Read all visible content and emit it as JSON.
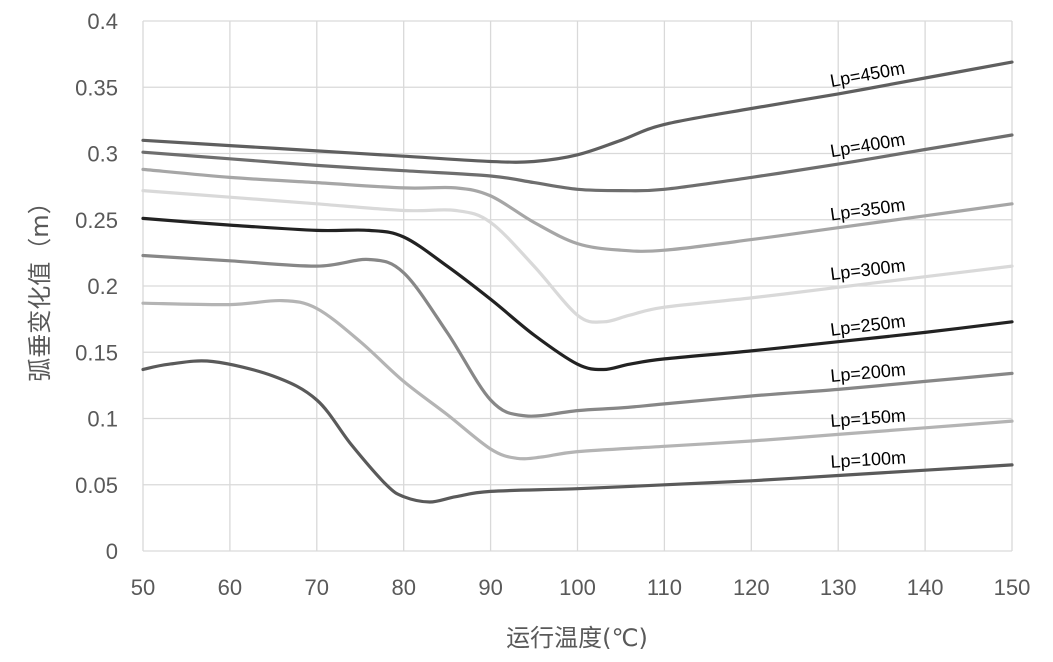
{
  "chart_data": {
    "type": "line",
    "title": "",
    "xlabel": "运行温度(℃)",
    "ylabel": "弧垂变化值（m）",
    "xlim": [
      50,
      150
    ],
    "ylim": [
      0,
      0.4
    ],
    "x_ticks": [
      "50",
      "60",
      "70",
      "80",
      "90",
      "100",
      "110",
      "120",
      "130",
      "140",
      "150"
    ],
    "y_ticks": [
      "0",
      "0.05",
      "0.1",
      "0.15",
      "0.2",
      "0.25",
      "0.3",
      "0.35",
      "0.4"
    ],
    "grid": true,
    "legend": "none",
    "series": [
      {
        "name": "Lp=450m",
        "color": "#5f5f5f",
        "x": [
          50,
          60,
          70,
          80,
          90,
          95,
          100,
          105,
          110,
          120,
          130,
          140,
          150
        ],
        "y": [
          0.31,
          0.306,
          0.302,
          0.298,
          0.294,
          0.294,
          0.299,
          0.31,
          0.322,
          0.334,
          0.345,
          0.357,
          0.369
        ]
      },
      {
        "name": "Lp=400m",
        "color": "#6e6e6e",
        "x": [
          50,
          60,
          70,
          80,
          90,
          95,
          100,
          105,
          110,
          120,
          130,
          140,
          150
        ],
        "y": [
          0.301,
          0.296,
          0.291,
          0.287,
          0.283,
          0.278,
          0.273,
          0.272,
          0.273,
          0.282,
          0.292,
          0.303,
          0.314
        ]
      },
      {
        "name": "Lp=350m",
        "color": "#a6a6a6",
        "x": [
          50,
          60,
          70,
          80,
          86,
          90,
          95,
          100,
          105,
          110,
          120,
          130,
          140,
          150
        ],
        "y": [
          0.288,
          0.282,
          0.278,
          0.274,
          0.274,
          0.268,
          0.248,
          0.232,
          0.227,
          0.227,
          0.235,
          0.244,
          0.253,
          0.262
        ]
      },
      {
        "name": "Lp=300m",
        "color": "#d9d9d9",
        "x": [
          50,
          60,
          70,
          80,
          86,
          90,
          95,
          100,
          103,
          106,
          110,
          120,
          130,
          140,
          150
        ],
        "y": [
          0.272,
          0.267,
          0.262,
          0.257,
          0.257,
          0.248,
          0.215,
          0.178,
          0.173,
          0.178,
          0.184,
          0.191,
          0.199,
          0.207,
          0.215
        ]
      },
      {
        "name": "Lp=250m",
        "color": "#222222",
        "x": [
          50,
          60,
          70,
          76,
          80,
          85,
          90,
          95,
          100,
          103,
          106,
          110,
          120,
          130,
          140,
          150
        ],
        "y": [
          0.251,
          0.246,
          0.242,
          0.242,
          0.237,
          0.215,
          0.19,
          0.163,
          0.141,
          0.137,
          0.141,
          0.145,
          0.151,
          0.158,
          0.165,
          0.173
        ]
      },
      {
        "name": "Lp=200m",
        "color": "#878787",
        "x": [
          50,
          60,
          70,
          76,
          80,
          85,
          90,
          94,
          100,
          105,
          110,
          120,
          130,
          140,
          150
        ],
        "y": [
          0.223,
          0.219,
          0.215,
          0.22,
          0.21,
          0.165,
          0.114,
          0.102,
          0.106,
          0.108,
          0.111,
          0.117,
          0.122,
          0.128,
          0.134
        ]
      },
      {
        "name": "Lp=150m",
        "color": "#b4b4b4",
        "x": [
          50,
          60,
          66,
          70,
          75,
          80,
          85,
          90,
          93,
          96,
          100,
          110,
          120,
          130,
          140,
          150
        ],
        "y": [
          0.187,
          0.186,
          0.189,
          0.183,
          0.158,
          0.128,
          0.103,
          0.077,
          0.07,
          0.071,
          0.075,
          0.079,
          0.083,
          0.088,
          0.093,
          0.098
        ]
      },
      {
        "name": "Lp=100m",
        "color": "#5a5a5a",
        "x": [
          50,
          53,
          58,
          65,
          70,
          74,
          78,
          80,
          83,
          86,
          90,
          100,
          110,
          120,
          130,
          140,
          150
        ],
        "y": [
          0.137,
          0.141,
          0.143,
          0.132,
          0.114,
          0.08,
          0.05,
          0.041,
          0.037,
          0.041,
          0.045,
          0.047,
          0.05,
          0.053,
          0.057,
          0.061,
          0.065
        ]
      }
    ]
  }
}
